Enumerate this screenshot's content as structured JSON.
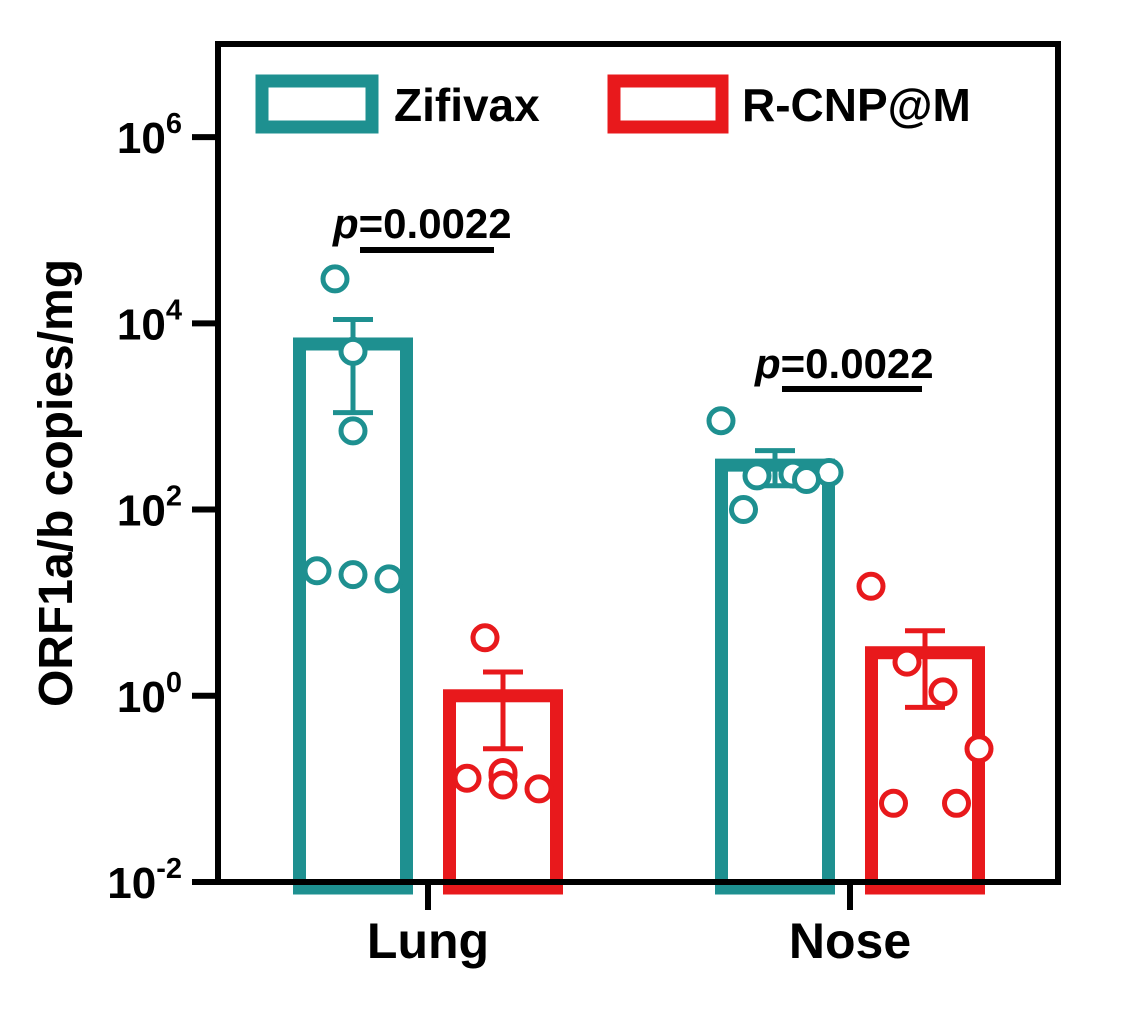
{
  "chart_data": {
    "type": "bar",
    "y_scale": "log10",
    "ylabel": "ORF1a/b copies/mg",
    "ylim": [
      0.01,
      10000000
    ],
    "y_ticks": [
      {
        "value": 0.01,
        "base": "10",
        "exp": "-2"
      },
      {
        "value": 1,
        "base": "10",
        "exp": "0"
      },
      {
        "value": 100,
        "base": "10",
        "exp": "2"
      },
      {
        "value": 10000,
        "base": "10",
        "exp": "4"
      },
      {
        "value": 1000000,
        "base": "10",
        "exp": "6"
      }
    ],
    "categories": [
      "Lung",
      "Nose"
    ],
    "series": [
      {
        "name": "Zifivax",
        "color": "#1e9090",
        "values": [
          6000,
          300
        ],
        "error_low": [
          1100,
          180
        ],
        "error_high": [
          11000,
          430
        ],
        "points": [
          [
            30000,
            5000,
            700,
            22,
            20,
            18
          ],
          [
            900,
            230,
            240,
            250,
            210,
            100
          ]
        ]
      },
      {
        "name": "R-CNP@M",
        "color": "#e8191c",
        "values": [
          1.0,
          2.9
        ],
        "error_low": [
          0.27,
          0.75
        ],
        "error_high": [
          1.8,
          5.0
        ],
        "points": [
          [
            4.2,
            0.14,
            0.15,
            0.13,
            0.11,
            0.1
          ],
          [
            15,
            2.3,
            1.1,
            0.27,
            0.07,
            0.07
          ]
        ]
      }
    ],
    "annotations": [
      {
        "category": "Lung",
        "italic": "p",
        "text": "=0.0022"
      },
      {
        "category": "Nose",
        "italic": "p",
        "text": "=0.0022"
      }
    ],
    "legend_position": "top"
  }
}
